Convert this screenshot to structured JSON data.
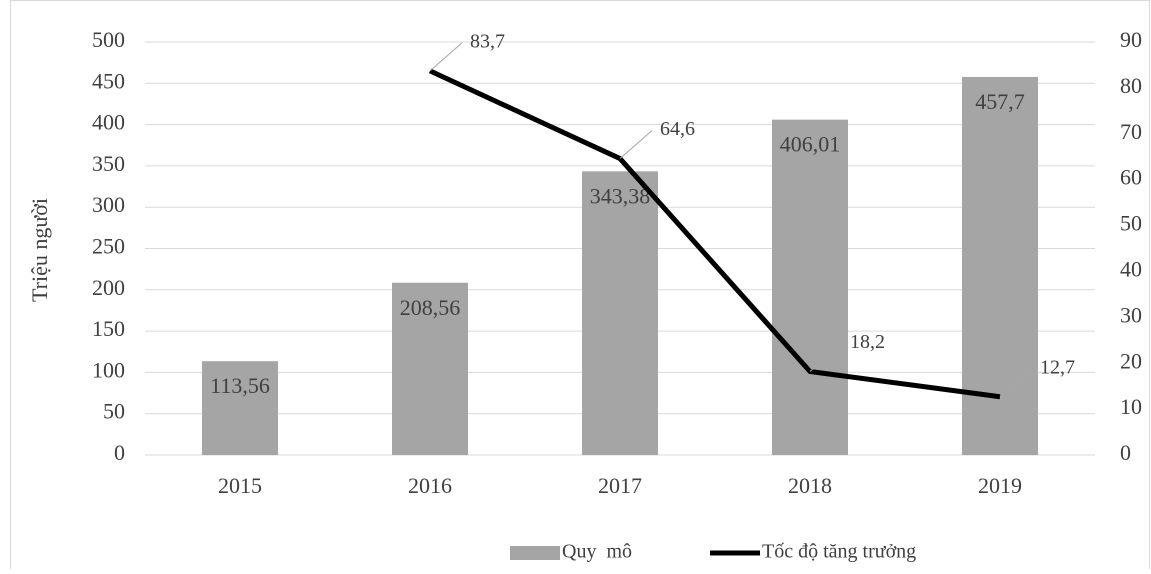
{
  "chart_data": {
    "type": "bar",
    "categories": [
      "2015",
      "2016",
      "2017",
      "2018",
      "2019"
    ],
    "y_label": "Triệu người",
    "ylim": [
      0,
      500
    ],
    "yticks": [
      0,
      50,
      100,
      150,
      200,
      250,
      300,
      350,
      400,
      450,
      500
    ],
    "y2lim": [
      0,
      90
    ],
    "y2ticks": [
      0,
      10,
      20,
      30,
      40,
      50,
      60,
      70,
      80,
      90
    ],
    "grid": true,
    "legend": "bottom",
    "series": [
      {
        "name": "Quy  mô",
        "type": "bar",
        "color": "#a5a5a5",
        "values": [
          113.56,
          208.56,
          343.38,
          406.01,
          457.7
        ],
        "value_labels": [
          "113,56",
          "208,56",
          "343,38",
          "406,01",
          "457,7"
        ]
      },
      {
        "name": "Tốc độ tăng trưởng",
        "type": "line",
        "axis": "y2",
        "color": "#000000",
        "values": [
          null,
          83.7,
          64.6,
          18.2,
          12.7
        ],
        "value_labels": [
          null,
          "83,7",
          "64,6",
          "18,2",
          "12,7"
        ]
      }
    ]
  }
}
